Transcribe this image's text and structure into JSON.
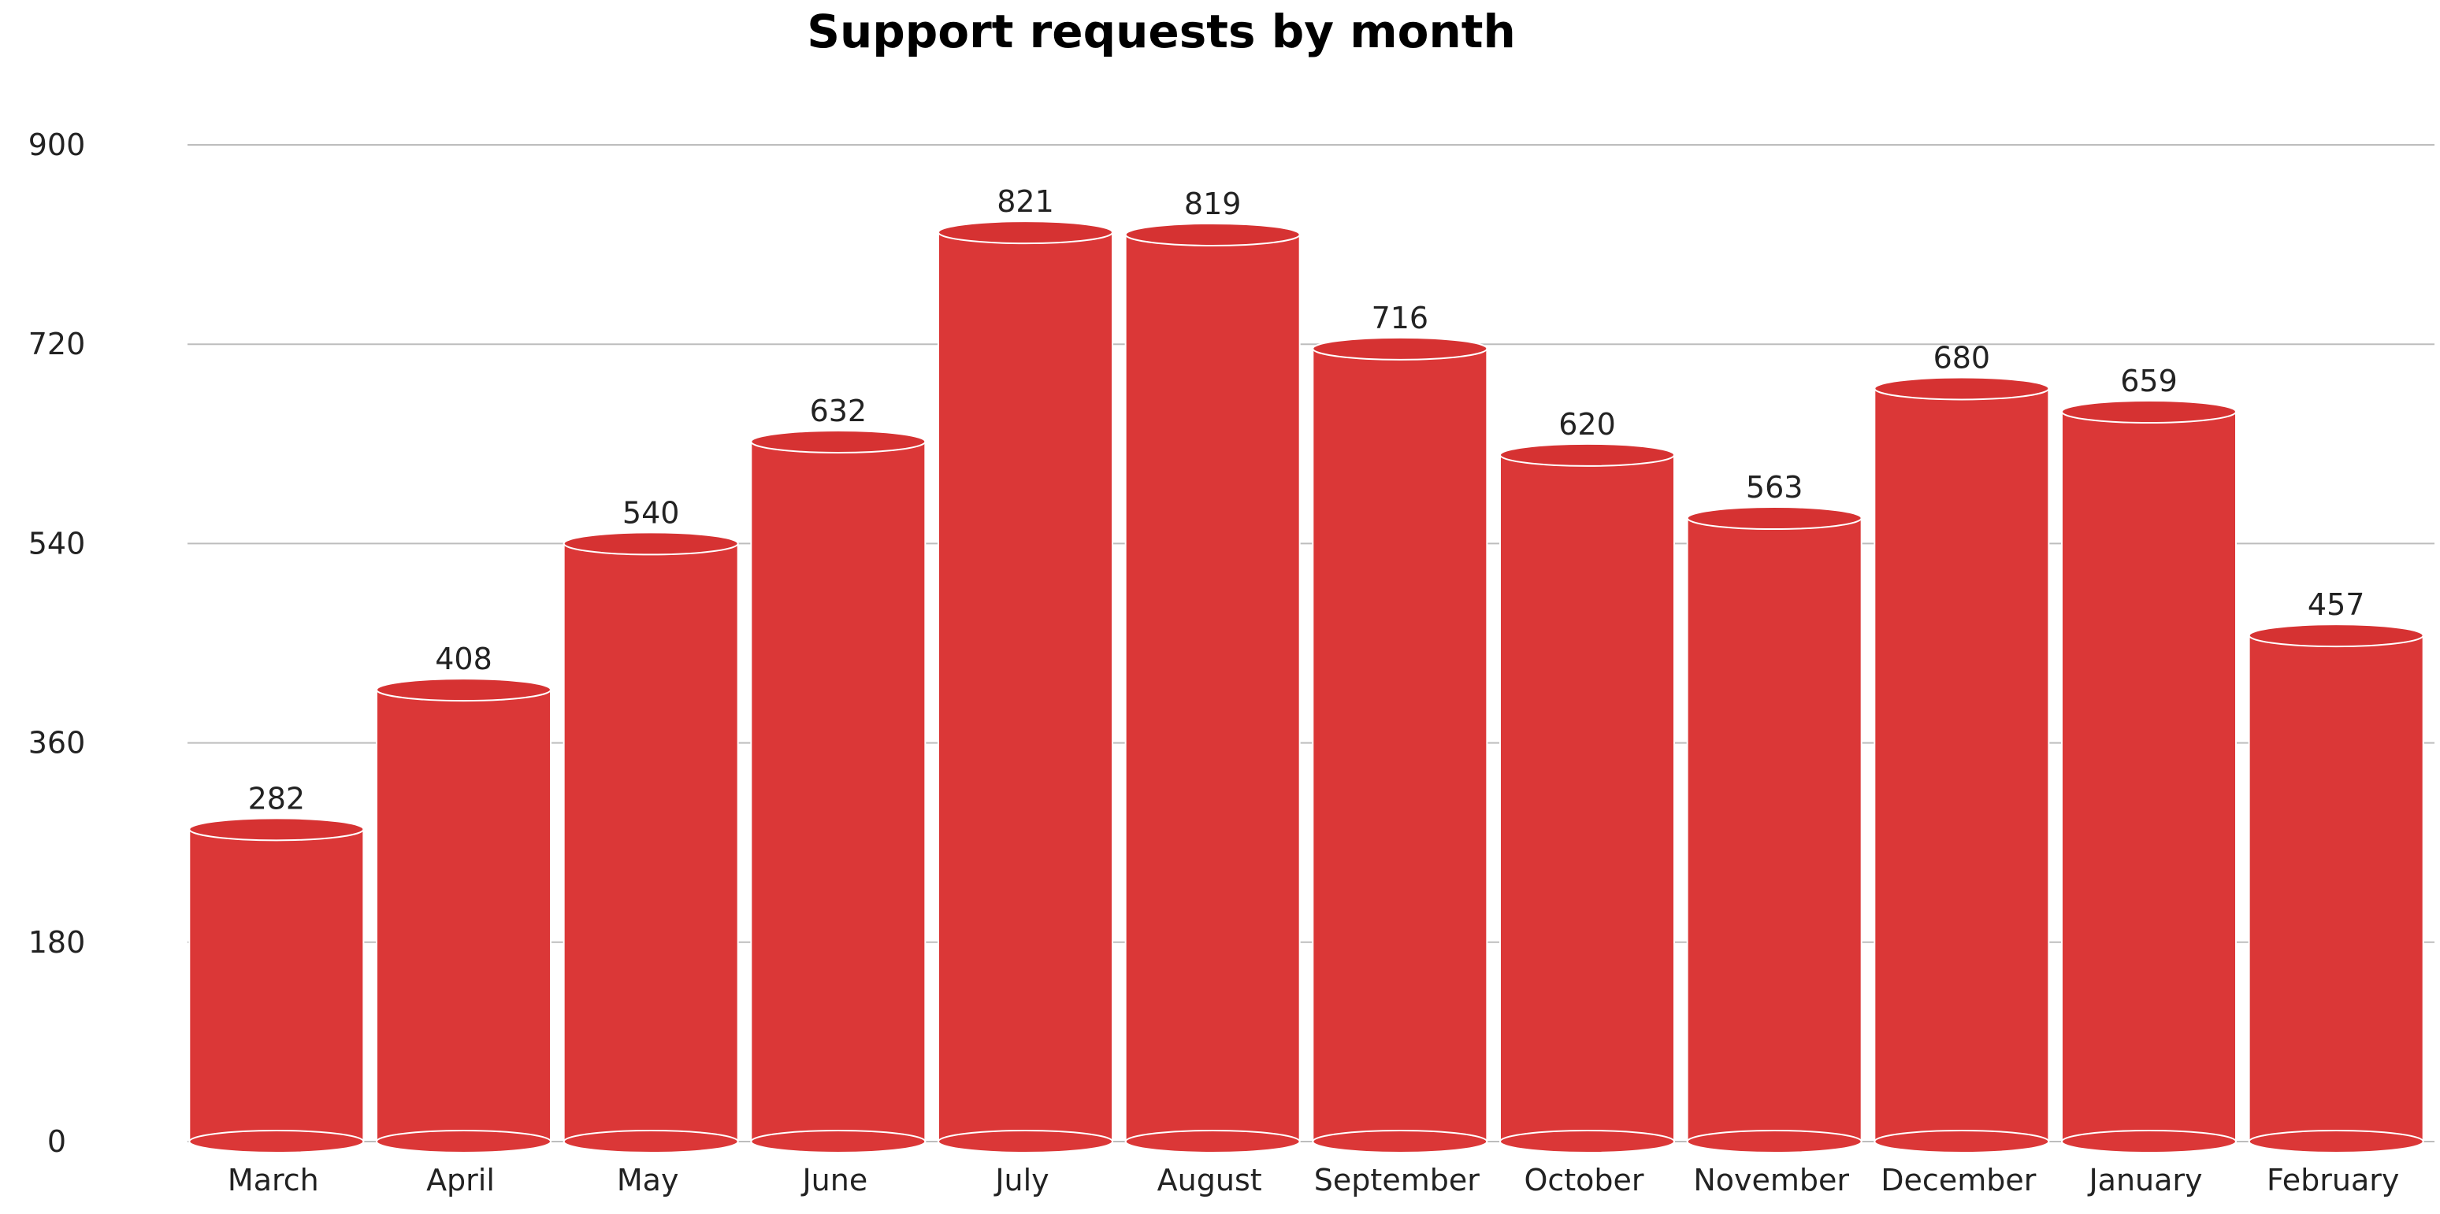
{
  "chart_data": {
    "type": "bar",
    "style": "cylinder",
    "title": "Support requests by month",
    "xlabel": "",
    "ylabel": "",
    "categories": [
      "March",
      "April",
      "May",
      "June",
      "July",
      "August",
      "September",
      "October",
      "November",
      "December",
      "January",
      "February"
    ],
    "values": [
      282,
      408,
      540,
      632,
      821,
      819,
      716,
      620,
      563,
      680,
      659,
      457
    ],
    "value_labels": [
      "282",
      "408",
      "540",
      "632",
      "821",
      "819",
      "716",
      "620",
      "563",
      "680",
      "659",
      "457"
    ],
    "ylim": [
      0,
      900
    ],
    "yticks": [
      0,
      180,
      360,
      540,
      720,
      900
    ],
    "ytick_labels": [
      "0",
      "180",
      "360",
      "540",
      "720",
      "900"
    ],
    "grid": true,
    "legend": "none",
    "colors": {
      "bar": "#db3737",
      "bar_top": "#d63232",
      "bar_edge": "#ffffff",
      "grid": "#bdbdbd",
      "text": "#222222",
      "title": "#000000"
    }
  }
}
